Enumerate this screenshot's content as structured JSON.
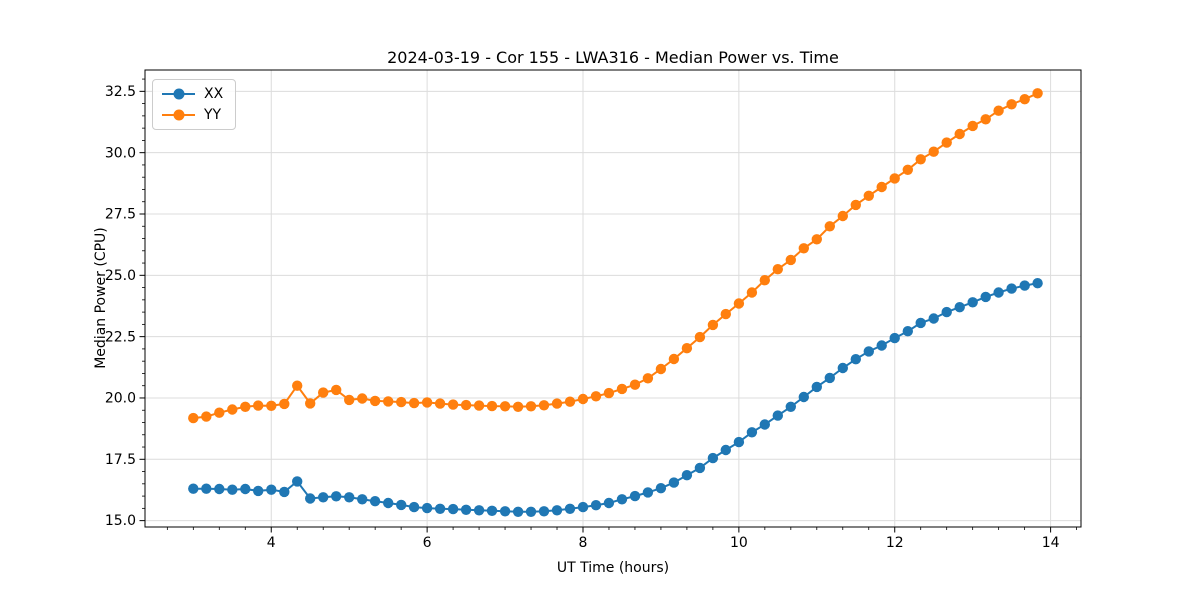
{
  "styles": {
    "background": "#ffffff",
    "grid_color": "#dcdcdc",
    "spine_color": "#000000",
    "tick_color": "#000000",
    "text_color": "#000000"
  },
  "chart_data": {
    "type": "line",
    "title": "2024-03-19 - Cor 155 - LWA316 - Median Power vs. Time",
    "xlabel": "UT Time (hours)",
    "ylabel": "Median Power (CPU)",
    "xlim": [
      2.38,
      14.39
    ],
    "ylim": [
      14.74,
      33.37
    ],
    "x_ticks": [
      4,
      6,
      8,
      10,
      12,
      14
    ],
    "x_tick_labels": [
      "4",
      "6",
      "8",
      "10",
      "12",
      "14"
    ],
    "y_ticks": [
      15.0,
      17.5,
      20.0,
      22.5,
      25.0,
      27.5,
      30.0,
      32.5
    ],
    "y_tick_labels": [
      "15.0",
      "17.5",
      "20.0",
      "22.5",
      "25.0",
      "27.5",
      "30.0",
      "32.5"
    ],
    "x_minor_step": 0.33333,
    "y_minor_step": 0.5,
    "grid": "major",
    "legend_position": "upper left",
    "marker": "circle",
    "x": [
      3.0,
      3.167,
      3.333,
      3.5,
      3.667,
      3.833,
      4.0,
      4.167,
      4.333,
      4.5,
      4.667,
      4.833,
      5.0,
      5.167,
      5.333,
      5.5,
      5.667,
      5.833,
      6.0,
      6.167,
      6.333,
      6.5,
      6.667,
      6.833,
      7.0,
      7.167,
      7.333,
      7.5,
      7.667,
      7.833,
      8.0,
      8.167,
      8.333,
      8.5,
      8.667,
      8.833,
      9.0,
      9.167,
      9.333,
      9.5,
      9.667,
      9.833,
      10.0,
      10.167,
      10.333,
      10.5,
      10.667,
      10.833,
      11.0,
      11.167,
      11.333,
      11.5,
      11.667,
      11.833,
      12.0,
      12.167,
      12.333,
      12.5,
      12.667,
      12.833,
      13.0,
      13.167,
      13.333,
      13.5,
      13.667,
      13.833
    ],
    "series": [
      {
        "name": "XX",
        "color": "#1f77b4",
        "values": [
          16.3,
          16.3,
          16.29,
          16.26,
          16.29,
          16.21,
          16.26,
          16.17,
          16.6,
          15.9,
          15.95,
          15.99,
          15.95,
          15.87,
          15.79,
          15.72,
          15.64,
          15.55,
          15.51,
          15.48,
          15.47,
          15.44,
          15.42,
          15.4,
          15.38,
          15.36,
          15.36,
          15.38,
          15.42,
          15.48,
          15.55,
          15.63,
          15.72,
          15.87,
          16.0,
          16.15,
          16.32,
          16.55,
          16.85,
          17.15,
          17.55,
          17.88,
          18.2,
          18.6,
          18.92,
          19.28,
          19.64,
          20.04,
          20.45,
          20.82,
          21.22,
          21.58,
          21.9,
          22.14,
          22.44,
          22.72,
          23.06,
          23.24,
          23.5,
          23.7,
          23.9,
          24.12,
          24.3,
          24.46,
          24.58,
          24.68
        ]
      },
      {
        "name": "YY",
        "color": "#ff7f0e",
        "values": [
          19.18,
          19.24,
          19.4,
          19.53,
          19.64,
          19.69,
          19.68,
          19.76,
          20.5,
          19.78,
          20.22,
          20.33,
          19.92,
          19.98,
          19.88,
          19.86,
          19.83,
          19.79,
          19.82,
          19.77,
          19.73,
          19.71,
          19.69,
          19.67,
          19.66,
          19.64,
          19.66,
          19.7,
          19.77,
          19.85,
          19.96,
          20.07,
          20.2,
          20.37,
          20.54,
          20.8,
          21.18,
          21.59,
          22.03,
          22.48,
          22.98,
          23.42,
          23.85,
          24.3,
          24.8,
          25.25,
          25.63,
          26.1,
          26.47,
          27.0,
          27.42,
          27.87,
          28.24,
          28.6,
          28.95,
          29.3,
          29.73,
          30.04,
          30.41,
          30.76,
          31.09,
          31.36,
          31.71,
          31.97,
          32.18,
          32.42
        ]
      }
    ]
  }
}
